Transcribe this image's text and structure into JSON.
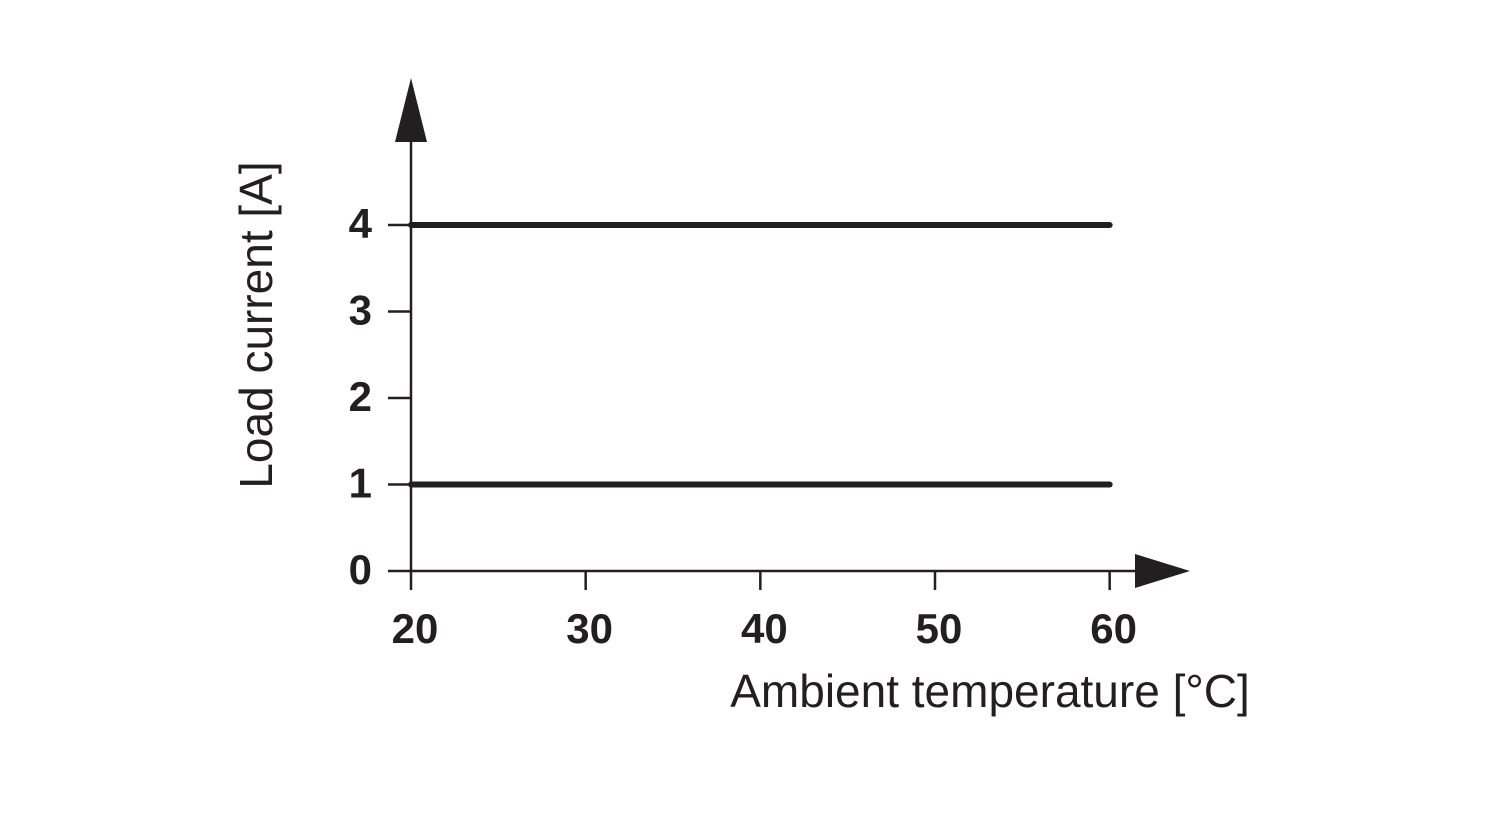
{
  "chart_data": {
    "type": "line",
    "x_label": "Ambient temperature [°C]",
    "y_label": "Load current [A]",
    "x": [
      20,
      60
    ],
    "series": [
      {
        "color": "#231f20",
        "values": [
          4,
          4
        ]
      },
      {
        "color": "#231f20",
        "values": [
          1,
          1
        ]
      }
    ],
    "xlim": [
      20,
      65
    ],
    "xticks": [
      20,
      30,
      40,
      50,
      60
    ],
    "ylim": [
      0,
      5.7
    ],
    "yticks": [
      0,
      1,
      2,
      3,
      4
    ],
    "grid": false
  }
}
